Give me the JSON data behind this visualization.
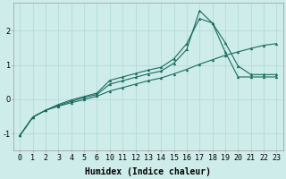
{
  "background_color": "#ceecea",
  "grid_color": "#aed8d4",
  "line_color": "#1a6b5e",
  "xlabel": "Humidex (Indice chaleur)",
  "xlabel_fontsize": 7,
  "tick_fontsize": 6,
  "x_labels": [
    "0",
    "1",
    "2",
    "3",
    "4",
    "5",
    "6",
    "10",
    "11",
    "12",
    "13",
    "14",
    "15",
    "16",
    "17",
    "18",
    "19",
    "20",
    "21",
    "22",
    "23"
  ],
  "ylim": [
    -1.5,
    2.8
  ],
  "yticks": [
    -1,
    0,
    1,
    2
  ],
  "line1_y": [
    -1.05,
    -0.52,
    -0.32,
    -0.15,
    -0.02,
    0.08,
    0.18,
    0.55,
    0.65,
    0.75,
    0.85,
    0.93,
    1.18,
    1.62,
    2.35,
    2.22,
    1.65,
    0.97,
    0.72,
    0.72,
    0.72
  ],
  "line2_y": [
    -1.05,
    -0.52,
    -0.32,
    -0.18,
    -0.06,
    0.05,
    0.14,
    0.44,
    0.54,
    0.64,
    0.74,
    0.82,
    1.05,
    1.45,
    2.58,
    2.22,
    1.38,
    0.65,
    0.65,
    0.65,
    0.65
  ],
  "line3_y": [
    -1.05,
    -0.52,
    -0.32,
    -0.2,
    -0.1,
    -0.01,
    0.09,
    0.24,
    0.34,
    0.44,
    0.54,
    0.62,
    0.74,
    0.87,
    1.02,
    1.15,
    1.28,
    1.38,
    1.48,
    1.57,
    1.62
  ]
}
